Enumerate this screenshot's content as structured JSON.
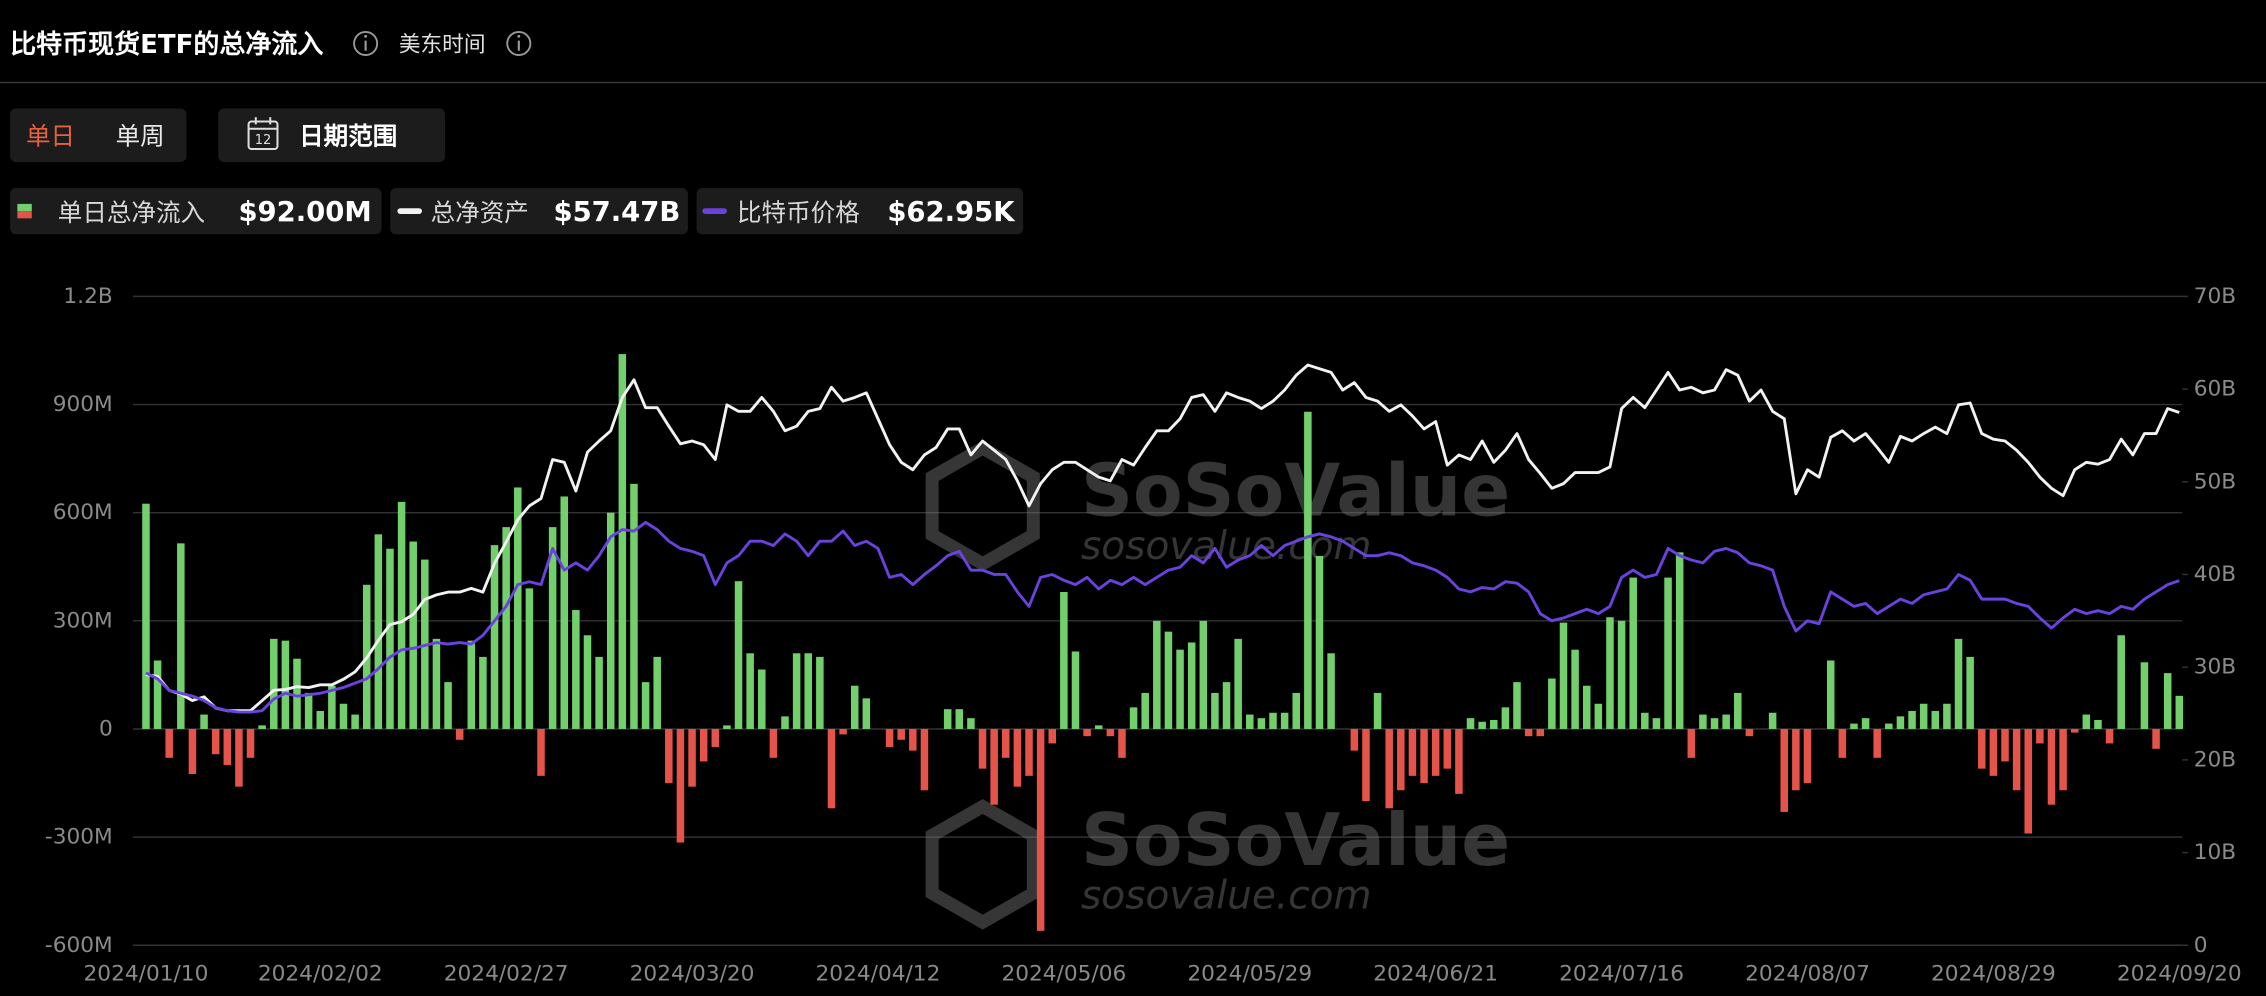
{
  "header": {
    "title": "比特币现货ETF的总净流入",
    "timezone": "美东时间"
  },
  "controls": {
    "tabs": [
      "单日",
      "单周"
    ],
    "calendar_day": "12",
    "date_range": "日期范围"
  },
  "watermark": {
    "brand": "SoSoValue",
    "url": "sosovalue.com"
  },
  "chart_data": {
    "type": "combo",
    "categories": [
      "2024/01/10",
      null,
      null,
      null,
      null,
      null,
      null,
      null,
      null,
      null,
      null,
      null,
      null,
      null,
      null,
      "2024/02/02",
      null,
      null,
      null,
      null,
      null,
      null,
      null,
      null,
      null,
      null,
      null,
      null,
      null,
      null,
      null,
      "2024/02/27",
      null,
      null,
      null,
      null,
      null,
      null,
      null,
      null,
      null,
      null,
      null,
      null,
      null,
      null,
      null,
      "2024/03/20",
      null,
      null,
      null,
      null,
      null,
      null,
      null,
      null,
      null,
      null,
      null,
      null,
      null,
      null,
      null,
      "2024/04/12",
      null,
      null,
      null,
      null,
      null,
      null,
      null,
      null,
      null,
      null,
      null,
      null,
      null,
      null,
      null,
      "2024/05/06",
      null,
      null,
      null,
      null,
      null,
      null,
      null,
      null,
      null,
      null,
      null,
      null,
      null,
      null,
      null,
      "2024/05/29",
      null,
      null,
      null,
      null,
      null,
      null,
      null,
      null,
      null,
      null,
      null,
      null,
      null,
      null,
      null,
      "2024/06/21",
      null,
      null,
      null,
      null,
      null,
      null,
      null,
      null,
      null,
      null,
      null,
      null,
      null,
      null,
      null,
      "2024/07/16",
      null,
      null,
      null,
      null,
      null,
      null,
      null,
      null,
      null,
      null,
      null,
      null,
      null,
      null,
      null,
      "2024/08/07",
      null,
      null,
      null,
      null,
      null,
      null,
      null,
      null,
      null,
      null,
      null,
      null,
      null,
      null,
      null,
      "2024/08/29",
      null,
      null,
      null,
      null,
      null,
      null,
      null,
      null,
      null,
      null,
      null,
      null,
      null,
      null,
      null,
      "2024/09/20"
    ],
    "series": [
      {
        "name": "单日总净流入",
        "type": "bar",
        "color": "#72cf6c",
        "negative_color": "#e4544a",
        "legend_value": "$92.00M",
        "values": [
          625,
          190,
          -80,
          515,
          -125,
          40,
          -70,
          -100,
          -160,
          -80,
          10,
          250,
          245,
          195,
          100,
          50,
          120,
          70,
          40,
          400,
          540,
          500,
          630,
          520,
          470,
          250,
          130,
          -30,
          245,
          200,
          510,
          560,
          670,
          390,
          -130,
          560,
          645,
          330,
          260,
          200,
          600,
          1040,
          680,
          130,
          200,
          -150,
          -315,
          -160,
          -90,
          -50,
          10,
          410,
          210,
          165,
          -80,
          35,
          210,
          210,
          200,
          -220,
          -15,
          120,
          85,
          0,
          -50,
          -30,
          -60,
          -170,
          0,
          55,
          55,
          30,
          -110,
          -210,
          -80,
          -160,
          -130,
          -560,
          -40,
          380,
          215,
          -20,
          10,
          -20,
          -80,
          60,
          100,
          300,
          270,
          220,
          240,
          300,
          100,
          130,
          250,
          40,
          30,
          45,
          45,
          100,
          880,
          480,
          210,
          0,
          -60,
          -200,
          100,
          -220,
          -170,
          -130,
          -150,
          -130,
          -110,
          -180,
          30,
          20,
          25,
          60,
          130,
          -20,
          -20,
          140,
          295,
          220,
          120,
          70,
          310,
          300,
          420,
          45,
          30,
          420,
          490,
          -80,
          40,
          30,
          40,
          100,
          -20,
          0,
          45,
          -230,
          -170,
          -150,
          0,
          190,
          -80,
          15,
          30,
          -80,
          15,
          35,
          50,
          70,
          50,
          70,
          250,
          200,
          -110,
          -130,
          -90,
          -170,
          -290,
          -40,
          -210,
          -170,
          -10,
          40,
          25,
          -40,
          260,
          0,
          185,
          -55,
          155,
          92
        ]
      },
      {
        "name": "总净资产",
        "type": "line",
        "axis": "y2",
        "color": "#f2f2f2",
        "legend_value": "$57.47B",
        "values": [
          29.2,
          29.0,
          27.5,
          27.1,
          26.4,
          26.8,
          25.6,
          25.3,
          25.3,
          25.3,
          26.4,
          27.5,
          27.6,
          27.9,
          27.8,
          28.1,
          28.1,
          28.7,
          29.5,
          31.0,
          32.9,
          34.6,
          34.9,
          35.7,
          37.3,
          37.8,
          38.1,
          38.1,
          38.5,
          38.1,
          41.2,
          43.5,
          45.9,
          47.4,
          48.2,
          52.4,
          52.1,
          49.0,
          53.2,
          54.4,
          55.5,
          59.1,
          61.0,
          58.0,
          58.0,
          56.0,
          54.1,
          54.4,
          54.0,
          52.4,
          58.3,
          57.6,
          57.6,
          59.1,
          57.6,
          55.5,
          56.0,
          57.6,
          57.9,
          60.2,
          58.7,
          59.1,
          59.6,
          56.8,
          54.0,
          52.1,
          51.3,
          52.9,
          53.7,
          55.7,
          55.7,
          52.9,
          54.4,
          53.4,
          52.4,
          50.1,
          47.4,
          49.8,
          51.3,
          52.1,
          52.1,
          51.3,
          50.5,
          50.1,
          52.4,
          51.8,
          53.7,
          55.5,
          55.5,
          56.8,
          59.1,
          59.4,
          57.6,
          59.6,
          59.1,
          58.7,
          57.9,
          58.7,
          59.9,
          61.5,
          62.6,
          62.2,
          61.8,
          59.9,
          60.7,
          59.1,
          58.7,
          57.6,
          58.3,
          57.1,
          55.7,
          56.5,
          51.8,
          52.9,
          52.4,
          54.4,
          52.1,
          53.4,
          55.2,
          52.4,
          50.9,
          49.3,
          49.8,
          51.0,
          51.0,
          51.0,
          51.6,
          57.9,
          59.1,
          58.0,
          59.9,
          61.8,
          59.9,
          60.2,
          59.6,
          59.9,
          62.1,
          61.5,
          58.7,
          59.9,
          57.6,
          56.8,
          48.7,
          51.3,
          50.5,
          54.8,
          55.5,
          54.4,
          55.2,
          53.7,
          52.1,
          54.9,
          54.4,
          55.2,
          55.9,
          55.2,
          58.3,
          58.5,
          55.2,
          54.6,
          54.4,
          53.4,
          52.1,
          50.5,
          49.3,
          48.5,
          51.3,
          52.1,
          51.9,
          52.4,
          54.6,
          52.9,
          55.2,
          55.2,
          57.9,
          57.47
        ]
      },
      {
        "name": "比特币价格",
        "type": "line",
        "axis": "y3",
        "color": "#6a42de",
        "legend_value": "$62.95K",
        "values": [
          47000,
          46000,
          44000,
          43500,
          43000,
          42250,
          41000,
          40500,
          40250,
          40250,
          40500,
          42500,
          43500,
          43000,
          43250,
          43500,
          44000,
          44500,
          45250,
          46000,
          47750,
          49750,
          51000,
          51250,
          51750,
          52250,
          52000,
          52250,
          52000,
          53500,
          56000,
          58500,
          62250,
          62750,
          62250,
          68500,
          64750,
          66000,
          64750,
          67250,
          70500,
          71750,
          71500,
          73000,
          71750,
          69750,
          68500,
          68000,
          67250,
          62250,
          66000,
          67250,
          69750,
          69750,
          69000,
          71000,
          69750,
          67250,
          69750,
          69750,
          71500,
          69000,
          69750,
          68500,
          63500,
          64000,
          62250,
          64000,
          65500,
          67250,
          68000,
          64750,
          64750,
          64000,
          64000,
          61000,
          58500,
          63500,
          64000,
          63000,
          62250,
          63500,
          61500,
          63000,
          62250,
          63500,
          62250,
          63500,
          64750,
          65250,
          67250,
          66000,
          68500,
          65250,
          66500,
          67250,
          69000,
          67250,
          69000,
          69750,
          70500,
          71000,
          70500,
          69750,
          68500,
          67250,
          67250,
          67750,
          67250,
          66000,
          65500,
          64750,
          63500,
          61500,
          61000,
          61750,
          61500,
          62750,
          62500,
          61000,
          57250,
          56000,
          56500,
          57250,
          58000,
          57250,
          58500,
          63500,
          64750,
          63500,
          64000,
          68500,
          67250,
          66500,
          66000,
          68000,
          68500,
          67750,
          66000,
          65500,
          64750,
          58500,
          54250,
          56000,
          55500,
          61000,
          59750,
          58500,
          59000,
          57250,
          58500,
          59750,
          59000,
          60500,
          61000,
          61500,
          64000,
          63000,
          59750,
          59750,
          59750,
          59000,
          58500,
          56500,
          54750,
          56500,
          58000,
          57250,
          57750,
          57250,
          58500,
          58000,
          59750,
          61000,
          62250,
          62950
        ]
      }
    ],
    "ylim": [
      -600,
      1200
    ],
    "yticks": [
      {
        "value": -600,
        "label": "-600M"
      },
      {
        "value": -300,
        "label": "-300M"
      },
      0,
      {
        "value": 300,
        "label": "300M"
      },
      {
        "value": 600,
        "label": "600M"
      },
      {
        "value": 900,
        "label": "900M"
      },
      {
        "value": 1200,
        "label": "1.2B"
      }
    ],
    "y2lim": [
      0,
      70
    ],
    "y2ticks": [
      0,
      {
        "value": 10,
        "label": "10B"
      },
      {
        "value": 20,
        "label": "20B"
      },
      {
        "value": 30,
        "label": "30B"
      },
      {
        "value": 40,
        "label": "40B"
      },
      {
        "value": 50,
        "label": "50B"
      },
      {
        "value": 60,
        "label": "60B"
      },
      {
        "value": 70,
        "label": "70B"
      }
    ],
    "y3lim": [
      0,
      112000
    ],
    "grid": true
  }
}
